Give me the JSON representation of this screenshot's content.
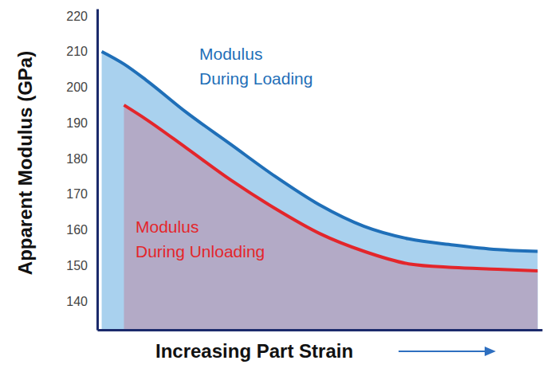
{
  "chart_data": {
    "type": "area",
    "x_label": "Increasing Part Strain",
    "y_label": "Apparent Modulus (GPa)",
    "x": [
      1,
      6,
      11,
      20,
      30,
      40,
      50,
      60,
      70,
      80,
      90,
      99
    ],
    "xlim": [
      0,
      100
    ],
    "xticks": [],
    "ylim": [
      132,
      222
    ],
    "yticks": [
      140,
      150,
      160,
      170,
      180,
      190,
      200,
      210,
      220
    ],
    "tick_labels": "y",
    "grid": false,
    "series": [
      {
        "name": "Modulus During Loading",
        "color": "#1f6fb8",
        "values": [
          210,
          206.5,
          202,
          193,
          184,
          175,
          167,
          161,
          157.5,
          155.8,
          154.5,
          154
        ]
      },
      {
        "name": "Modulus During Unloading",
        "color": "#e3262b",
        "values": [
          null,
          195,
          191,
          183,
          174,
          166,
          159,
          154,
          150.5,
          149.5,
          149,
          148.5
        ]
      }
    ],
    "annotations": [
      {
        "text": [
          "Modulus",
          "During Loading"
        ],
        "color": "#1f6fb8"
      },
      {
        "text": [
          "Modulus",
          "During Unloading"
        ],
        "color": "#e3262b"
      }
    ]
  }
}
